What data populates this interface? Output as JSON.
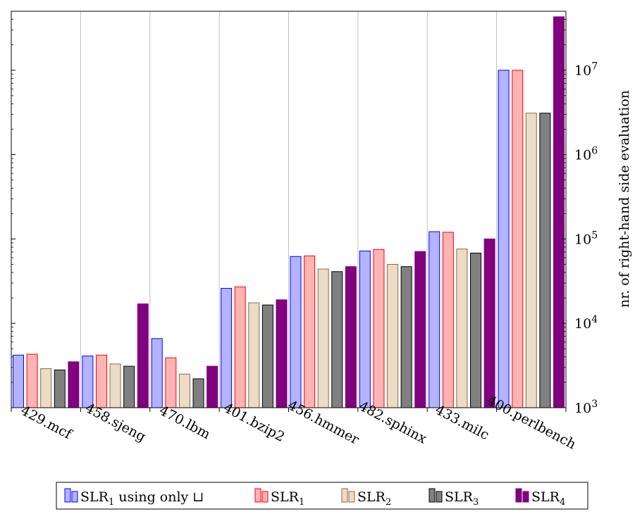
{
  "chart_data": {
    "type": "bar",
    "scale": "log",
    "ylabel": "nr. of right-hand side evaluation",
    "ylim": [
      1000,
      50000000
    ],
    "y_ticks": [
      {
        "value": 1000,
        "base": "10",
        "exp": "3"
      },
      {
        "value": 10000,
        "base": "10",
        "exp": "4"
      },
      {
        "value": 100000,
        "base": "10",
        "exp": "5"
      },
      {
        "value": 1000000,
        "base": "10",
        "exp": "6"
      },
      {
        "value": 10000000,
        "base": "10",
        "exp": "7"
      }
    ],
    "categories": [
      "429.mcf",
      "458.sjeng",
      "470.lbm",
      "401.bzip2",
      "456.hmmer",
      "482.sphinx",
      "433.milc",
      "400.perlbench"
    ],
    "grid": "vertical",
    "legend_position": "bottom",
    "series": [
      {
        "name": "SLR",
        "sub": "1",
        "suffix": " using only ⊔",
        "fill": "#b3b3ff",
        "stroke": "#0000ff",
        "values": [
          4200,
          4100,
          6600,
          26000,
          62000,
          72000,
          122000,
          10000000
        ]
      },
      {
        "name": "SLR",
        "sub": "1",
        "suffix": "",
        "fill": "#ffb3b3",
        "stroke": "#ff0000",
        "values": [
          4300,
          4200,
          3900,
          27000,
          63000,
          75000,
          120000,
          10000000
        ]
      },
      {
        "name": "SLR",
        "sub": "2",
        "suffix": "",
        "fill": "#ecdcc6",
        "stroke": "#8c6a45",
        "values": [
          2900,
          3300,
          2500,
          17500,
          44000,
          50000,
          76000,
          3100000
        ]
      },
      {
        "name": "SLR",
        "sub": "3",
        "suffix": "",
        "fill": "#808080",
        "stroke": "#000000",
        "values": [
          2800,
          3100,
          2200,
          16500,
          41000,
          47000,
          68000,
          3100000
        ]
      },
      {
        "name": "SLR",
        "sub": "4",
        "suffix": "",
        "fill": "#800080",
        "stroke": "#800080",
        "values": [
          3500,
          17000,
          3100,
          19000,
          47000,
          71000,
          100000,
          43000000
        ]
      }
    ]
  }
}
